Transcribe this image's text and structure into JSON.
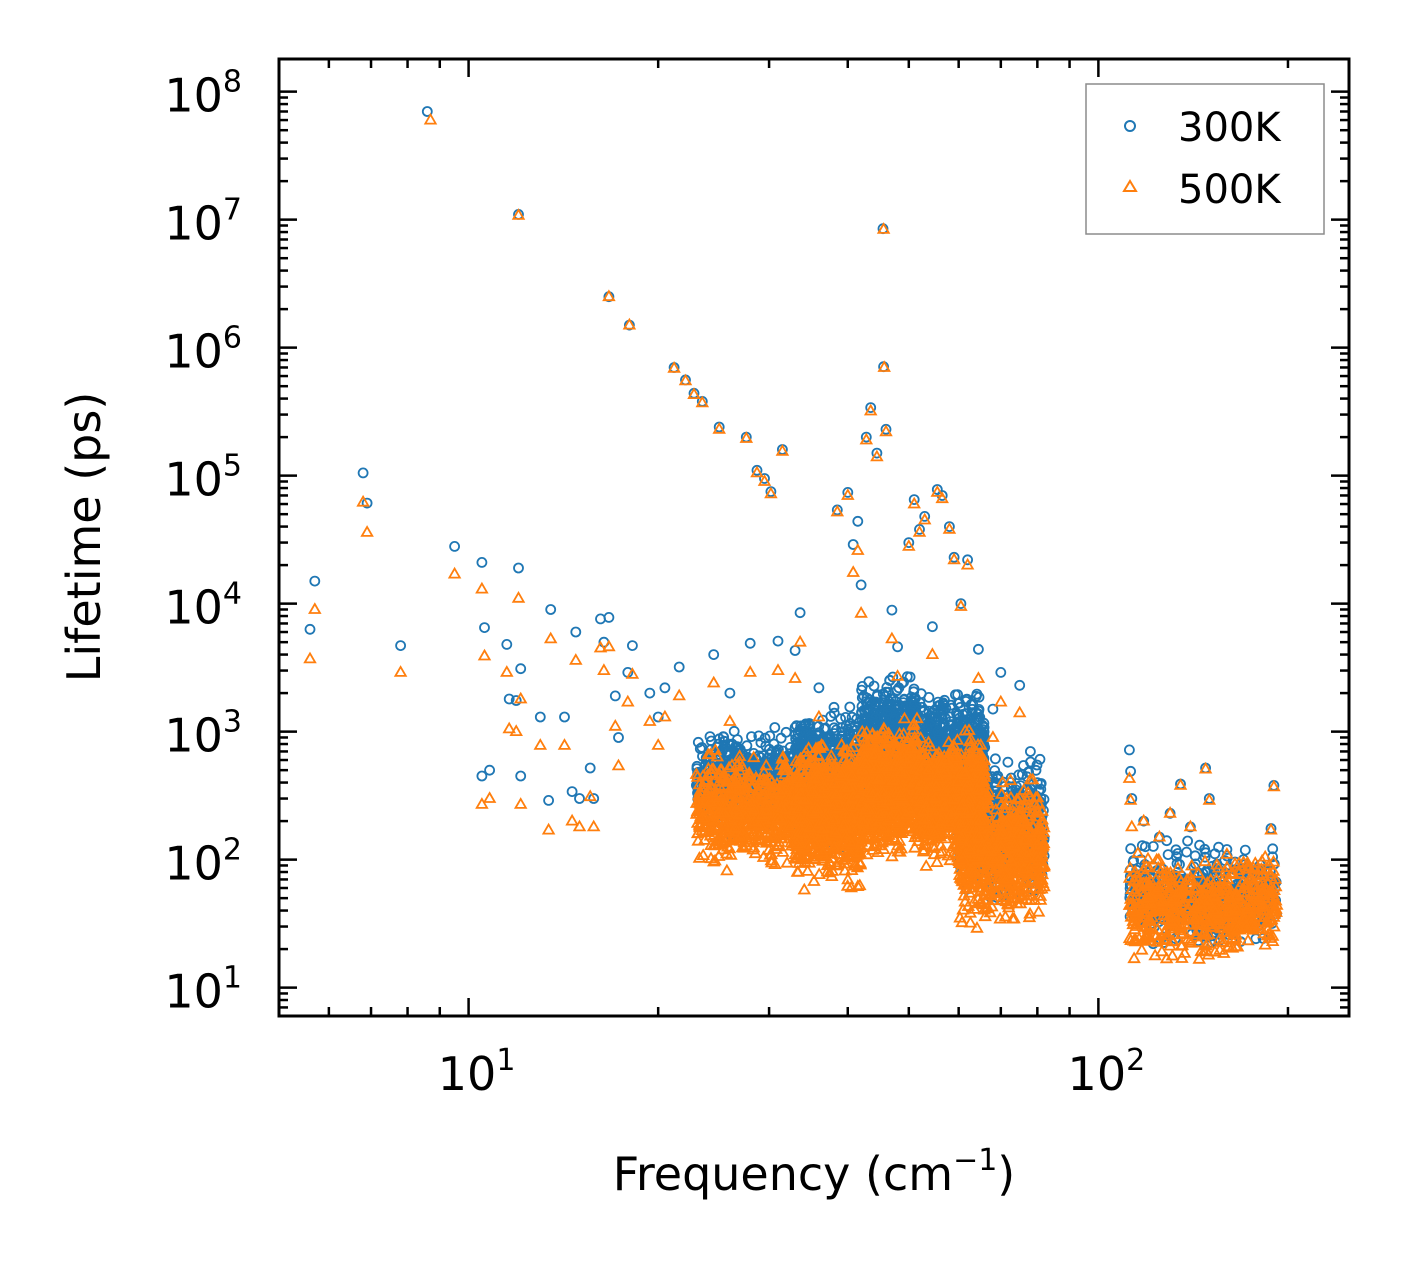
{
  "chart_data": {
    "type": "scatter",
    "title": "",
    "xlabel_base": "Frequency (cm",
    "xlabel_sup": "−1",
    "xlabel_close": ")",
    "ylabel": "Lifetime (ps)",
    "xscale": "log",
    "yscale": "log",
    "xlim": [
      5.0,
      250.0
    ],
    "ylim": [
      6.0,
      180000000.0
    ],
    "x_major_ticks": [
      {
        "value": 10,
        "base": "10",
        "exp": "1"
      },
      {
        "value": 100,
        "base": "10",
        "exp": "2"
      }
    ],
    "y_major_ticks": [
      {
        "value": 10,
        "base": "10",
        "exp": "1"
      },
      {
        "value": 100,
        "base": "10",
        "exp": "2"
      },
      {
        "value": 1000,
        "base": "10",
        "exp": "3"
      },
      {
        "value": 10000,
        "base": "10",
        "exp": "4"
      },
      {
        "value": 100000,
        "base": "10",
        "exp": "5"
      },
      {
        "value": 1000000,
        "base": "10",
        "exp": "6"
      },
      {
        "value": 10000000,
        "base": "10",
        "exp": "7"
      },
      {
        "value": 100000000,
        "base": "10",
        "exp": "8"
      }
    ],
    "legend_position": "top-right",
    "series": [
      {
        "name": "300K",
        "marker": "circle",
        "color": "#1f77b4",
        "points": [
          [
            5.6,
            6300
          ],
          [
            5.7,
            15000
          ],
          [
            6.8,
            105000
          ],
          [
            6.9,
            61000
          ],
          [
            7.8,
            4700
          ],
          [
            8.6,
            70000000
          ],
          [
            9.5,
            28000
          ],
          [
            10.5,
            21000
          ],
          [
            10.6,
            6500
          ],
          [
            10.5,
            450
          ],
          [
            10.8,
            500
          ],
          [
            11.5,
            4800
          ],
          [
            11.6,
            1800
          ],
          [
            11.9,
            1750
          ],
          [
            12.0,
            19000
          ],
          [
            12.1,
            3100
          ],
          [
            12.1,
            450
          ],
          [
            12.0,
            11000000
          ],
          [
            13.0,
            1300
          ],
          [
            13.4,
            290
          ],
          [
            13.5,
            9000
          ],
          [
            14.2,
            1300
          ],
          [
            14.6,
            340
          ],
          [
            14.8,
            6000
          ],
          [
            15.0,
            300
          ],
          [
            15.6,
            520
          ],
          [
            15.8,
            300
          ],
          [
            16.2,
            7600
          ],
          [
            16.4,
            5000
          ],
          [
            16.7,
            2500000
          ],
          [
            16.7,
            7800
          ],
          [
            17.1,
            1900
          ],
          [
            17.3,
            900
          ],
          [
            17.9,
            2900
          ],
          [
            18.2,
            4700
          ],
          [
            18.0,
            1500000
          ],
          [
            19.4,
            2000
          ],
          [
            20.0,
            1300
          ],
          [
            20.5,
            2200
          ],
          [
            21.2,
            700000
          ],
          [
            21.6,
            3200
          ],
          [
            22.1,
            560000
          ],
          [
            22.8,
            440000
          ],
          [
            23.5,
            380000
          ],
          [
            24.5,
            4000
          ],
          [
            25.0,
            240000
          ],
          [
            26.0,
            2000
          ],
          [
            27.6,
            200000
          ],
          [
            28.0,
            4900
          ],
          [
            28.7,
            110000
          ],
          [
            29.5,
            95000
          ],
          [
            30.2,
            75000
          ],
          [
            31.0,
            5100
          ],
          [
            31.5,
            160000
          ],
          [
            33.0,
            4300
          ],
          [
            33.6,
            8500
          ],
          [
            36.0,
            2200
          ],
          [
            38.5,
            54000
          ],
          [
            40.0,
            74000
          ],
          [
            40.8,
            29000
          ],
          [
            41.5,
            44000
          ],
          [
            42.0,
            14000
          ],
          [
            42.8,
            200000
          ],
          [
            43.5,
            340000
          ],
          [
            44.5,
            150000
          ],
          [
            45.5,
            8500000
          ],
          [
            45.6,
            710000
          ],
          [
            46.0,
            230000
          ],
          [
            47.0,
            8900
          ],
          [
            48.0,
            4600
          ],
          [
            50.0,
            30000
          ],
          [
            51.0,
            65000
          ],
          [
            52.0,
            38000
          ],
          [
            53.0,
            48000
          ],
          [
            54.5,
            6600
          ],
          [
            55.5,
            78000
          ],
          [
            56.5,
            70000
          ],
          [
            58.0,
            40000
          ],
          [
            59.0,
            23000
          ],
          [
            60.5,
            10000
          ],
          [
            62.0,
            22000
          ],
          [
            64.5,
            4400
          ],
          [
            68.0,
            1500
          ],
          [
            70.0,
            2900
          ],
          [
            75.0,
            2300
          ],
          [
            78.0,
            700
          ],
          [
            80.0,
            400
          ],
          [
            82.0,
            150
          ],
          [
            112.0,
            720
          ],
          [
            112.5,
            490
          ],
          [
            113.0,
            300
          ],
          [
            118.0,
            200
          ],
          [
            125.0,
            150
          ],
          [
            130.0,
            230
          ],
          [
            135.0,
            390
          ],
          [
            140.0,
            180
          ],
          [
            148.0,
            520
          ],
          [
            150.0,
            300
          ],
          [
            160.0,
            120
          ],
          [
            170.0,
            100
          ],
          [
            180.0,
            80
          ],
          [
            188.0,
            175
          ],
          [
            190.0,
            380
          ]
        ],
        "clusters": [
          {
            "x": [
              23,
              33
            ],
            "ly": [
              2.15,
              3.1
            ],
            "n": 520
          },
          {
            "x": [
              33,
              42
            ],
            "ly": [
              2.0,
              3.3
            ],
            "n": 780
          },
          {
            "x": [
              42,
              52
            ],
            "ly": [
              2.2,
              3.5
            ],
            "n": 880
          },
          {
            "x": [
              52,
              66
            ],
            "ly": [
              2.15,
              3.4
            ],
            "n": 860
          },
          {
            "x": [
              60,
              82
            ],
            "ly": [
              1.6,
              2.9
            ],
            "n": 620
          },
          {
            "x": [
              112,
              192
            ],
            "ly": [
              1.25,
              2.2
            ],
            "n": 560
          }
        ]
      },
      {
        "name": "500K",
        "marker": "triangle",
        "color": "#ff7f0e",
        "points": [
          [
            5.6,
            3700
          ],
          [
            5.7,
            9000
          ],
          [
            6.8,
            62000
          ],
          [
            6.9,
            36000
          ],
          [
            7.8,
            2900
          ],
          [
            8.7,
            60000000
          ],
          [
            9.5,
            17000
          ],
          [
            10.5,
            13000
          ],
          [
            10.6,
            3900
          ],
          [
            10.5,
            270
          ],
          [
            10.8,
            300
          ],
          [
            11.5,
            2900
          ],
          [
            11.6,
            1050
          ],
          [
            11.9,
            1000
          ],
          [
            12.0,
            11000
          ],
          [
            12.1,
            1800
          ],
          [
            12.1,
            270
          ],
          [
            12.0,
            10800000
          ],
          [
            13.0,
            780
          ],
          [
            13.4,
            170
          ],
          [
            13.5,
            5300
          ],
          [
            14.2,
            780
          ],
          [
            14.6,
            200
          ],
          [
            14.8,
            3600
          ],
          [
            15.0,
            180
          ],
          [
            15.6,
            310
          ],
          [
            15.8,
            180
          ],
          [
            16.2,
            4500
          ],
          [
            16.4,
            3000
          ],
          [
            16.7,
            2500000
          ],
          [
            16.7,
            4600
          ],
          [
            17.1,
            1100
          ],
          [
            17.3,
            540
          ],
          [
            17.9,
            1700
          ],
          [
            18.2,
            2800
          ],
          [
            18.0,
            1500000
          ],
          [
            19.4,
            1200
          ],
          [
            20.0,
            780
          ],
          [
            20.5,
            1300
          ],
          [
            21.2,
            690000
          ],
          [
            21.6,
            1900
          ],
          [
            22.1,
            550000
          ],
          [
            22.8,
            430000
          ],
          [
            23.5,
            370000
          ],
          [
            24.5,
            2400
          ],
          [
            25.0,
            230000
          ],
          [
            26.0,
            1200
          ],
          [
            27.6,
            195000
          ],
          [
            28.0,
            2900
          ],
          [
            28.7,
            105000
          ],
          [
            29.5,
            90000
          ],
          [
            30.2,
            72000
          ],
          [
            31.0,
            3000
          ],
          [
            31.5,
            155000
          ],
          [
            33.0,
            2600
          ],
          [
            33.6,
            5000
          ],
          [
            36.0,
            1300
          ],
          [
            38.5,
            52000
          ],
          [
            40.0,
            70000
          ],
          [
            40.8,
            17500
          ],
          [
            41.5,
            26000
          ],
          [
            42.0,
            8400
          ],
          [
            42.8,
            190000
          ],
          [
            43.5,
            320000
          ],
          [
            44.5,
            140000
          ],
          [
            45.6,
            8400000
          ],
          [
            45.7,
            700000
          ],
          [
            46.0,
            220000
          ],
          [
            47.0,
            5300
          ],
          [
            48.0,
            2700
          ],
          [
            50.0,
            28000
          ],
          [
            51.0,
            60000
          ],
          [
            52.0,
            36000
          ],
          [
            53.0,
            45000
          ],
          [
            54.5,
            4000
          ],
          [
            55.5,
            74000
          ],
          [
            56.5,
            66000
          ],
          [
            58.0,
            38000
          ],
          [
            59.0,
            22000
          ],
          [
            60.5,
            9500
          ],
          [
            62.0,
            20000
          ],
          [
            64.5,
            2600
          ],
          [
            68.0,
            900
          ],
          [
            70.0,
            1700
          ],
          [
            75.0,
            1400
          ],
          [
            78.0,
            420
          ],
          [
            80.0,
            240
          ],
          [
            82.0,
            90
          ],
          [
            112.0,
            430
          ],
          [
            112.5,
            290
          ],
          [
            113.0,
            180
          ],
          [
            118.0,
            200
          ],
          [
            125.0,
            150
          ],
          [
            130.0,
            230
          ],
          [
            135.0,
            380
          ],
          [
            140.0,
            180
          ],
          [
            148.0,
            510
          ],
          [
            150.0,
            290
          ],
          [
            160.0,
            110
          ],
          [
            170.0,
            95
          ],
          [
            180.0,
            75
          ],
          [
            188.0,
            170
          ],
          [
            190.0,
            370
          ]
        ],
        "clusters": [
          {
            "x": [
              23,
              33
            ],
            "ly": [
              1.85,
              2.9
            ],
            "n": 620
          },
          {
            "x": [
              33,
              42
            ],
            "ly": [
              1.7,
              3.05
            ],
            "n": 900
          },
          {
            "x": [
              42,
              52
            ],
            "ly": [
              1.95,
              3.15
            ],
            "n": 1000
          },
          {
            "x": [
              52,
              66
            ],
            "ly": [
              1.9,
              3.05
            ],
            "n": 950
          },
          {
            "x": [
              60,
              82
            ],
            "ly": [
              1.4,
              2.7
            ],
            "n": 720
          },
          {
            "x": [
              112,
              192
            ],
            "ly": [
              1.15,
              2.1
            ],
            "n": 620
          }
        ]
      }
    ]
  }
}
